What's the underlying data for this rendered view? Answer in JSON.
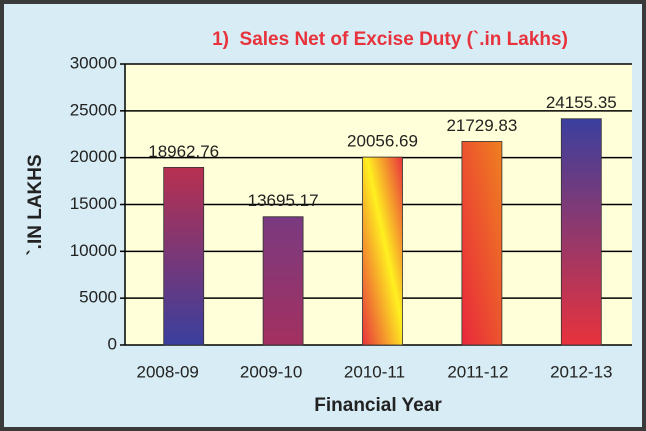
{
  "chart_data": {
    "type": "bar",
    "title": "1)  Sales Net of Excise Duty (`.in Lakhs)",
    "x_label": "Financial Year",
    "y_label": "`.IN LAKHS",
    "categories": [
      "2008-09",
      "2009-10",
      "2010-11",
      "2011-12",
      "2012-13"
    ],
    "values": [
      18962.76,
      13695.17,
      20056.69,
      21729.83,
      24155.35
    ],
    "bar_colors": [
      [
        "#3a3f9e",
        "#b83050"
      ],
      [
        "#a33060",
        "#7a3a80"
      ],
      [
        "#e8323c",
        "#fff020"
      ],
      [
        "#e8283c",
        "#f08020"
      ],
      [
        "#e8323c",
        "#3a3f9e"
      ]
    ],
    "ylim": [
      0,
      30000
    ],
    "yticks": [
      0,
      5000,
      10000,
      15000,
      20000,
      25000,
      30000
    ],
    "grid": true
  }
}
